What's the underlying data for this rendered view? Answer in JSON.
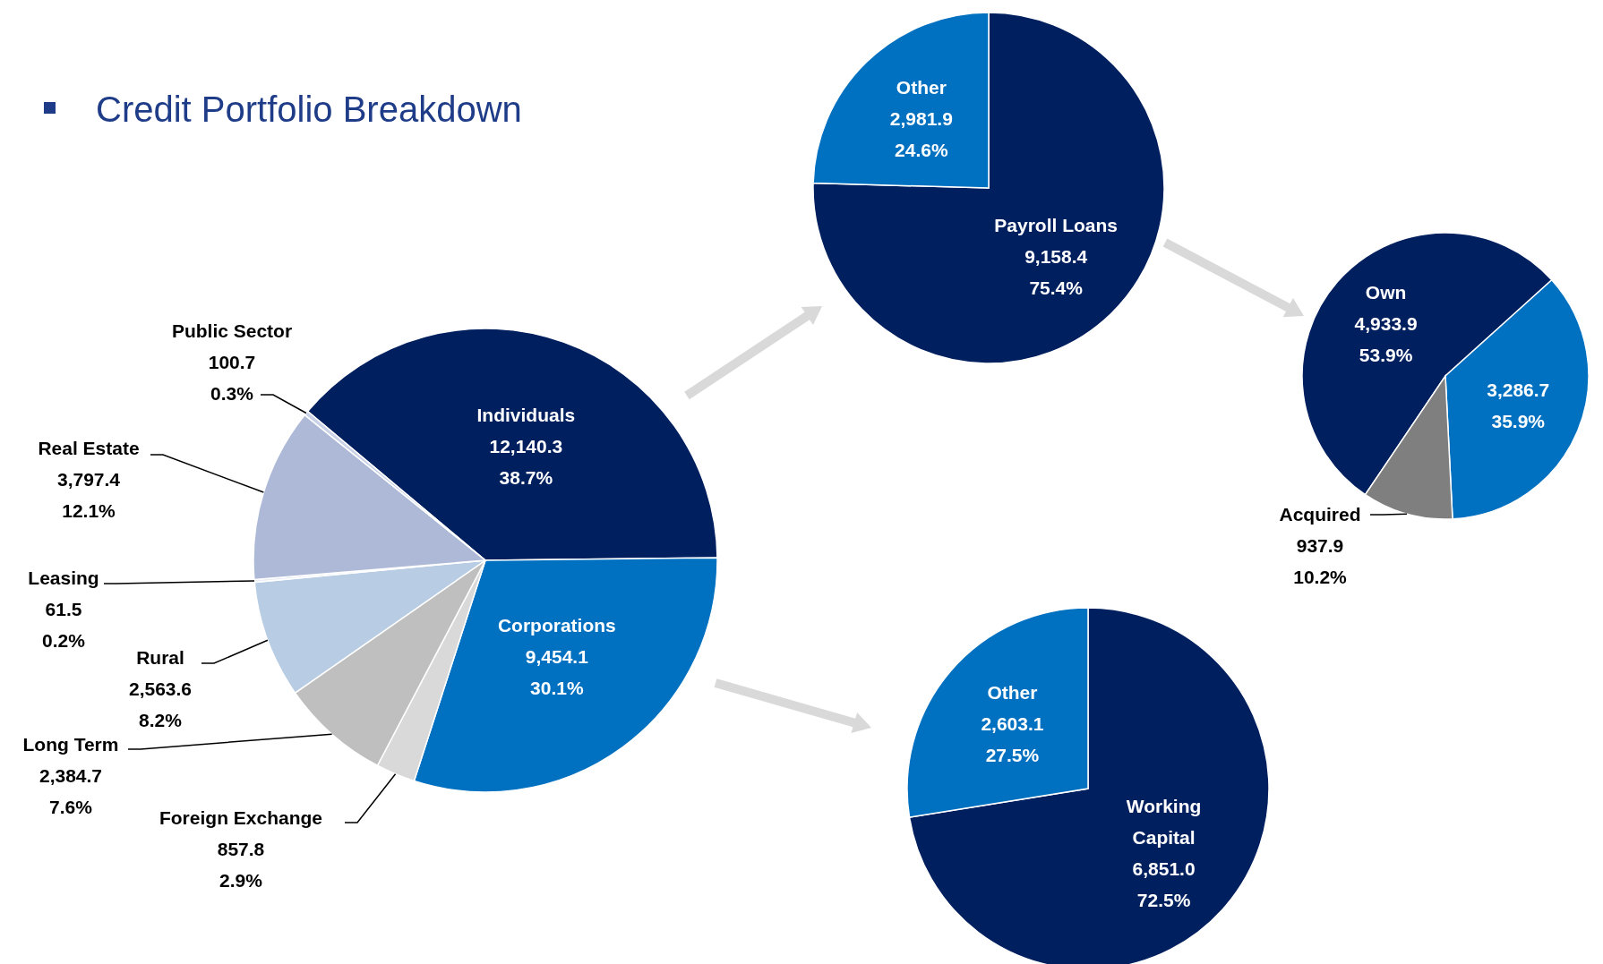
{
  "chart_data": [
    {
      "type": "pie",
      "title": "Credit Portfolio Breakdown",
      "categories": [
        "Individuals",
        "Corporations",
        "Foreign Exchange",
        "Long Term",
        "Rural",
        "Leasing",
        "Real Estate",
        "Public Sector"
      ],
      "values": [
        12140.3,
        9454.1,
        857.8,
        2384.7,
        2563.6,
        61.5,
        3797.4,
        100.7
      ],
      "colors": [
        "#001f5f",
        "#0070c0",
        "#d9d9d9",
        "#bfbfbf",
        "#b8cce4",
        "#e9edf5",
        "#adb9d6",
        "#c9d2e6"
      ],
      "value_labels": [
        "12,140.3\n38.7%",
        "9,454.1\n30.1%",
        "857.8\n2.9%",
        "2,384.7\n7.6%",
        "2,563.6\n8.2%",
        "61.5\n0.2%",
        "3,797.4\n12.1%",
        "100.7\n0.3%"
      ]
    },
    {
      "type": "pie",
      "categories": [
        "Payroll Loans",
        "Other"
      ],
      "values": [
        9158.4,
        2981.9
      ],
      "colors": [
        "#001f5f",
        "#0070c0"
      ],
      "value_labels": [
        "9,158.4\n75.4%",
        "2,981.9\n24.6%"
      ]
    },
    {
      "type": "pie",
      "categories": [
        "Own",
        null,
        "Acquired"
      ],
      "values": [
        4933.9,
        3286.7,
        937.9
      ],
      "colors": [
        "#001f5f",
        "#0070c0",
        "#7f7f7f"
      ],
      "value_labels": [
        "4,933.9\n53.9%",
        "3,286.7\n35.9%",
        "937.9\n10.2%"
      ]
    },
    {
      "type": "pie",
      "categories": [
        "Working Capital",
        "Other"
      ],
      "values": [
        6851.0,
        2603.1
      ],
      "colors": [
        "#001f5f",
        "#0070c0"
      ],
      "value_labels": [
        "6,851.0\n72.5%",
        "2,603.1\n27.5%"
      ]
    }
  ]
}
